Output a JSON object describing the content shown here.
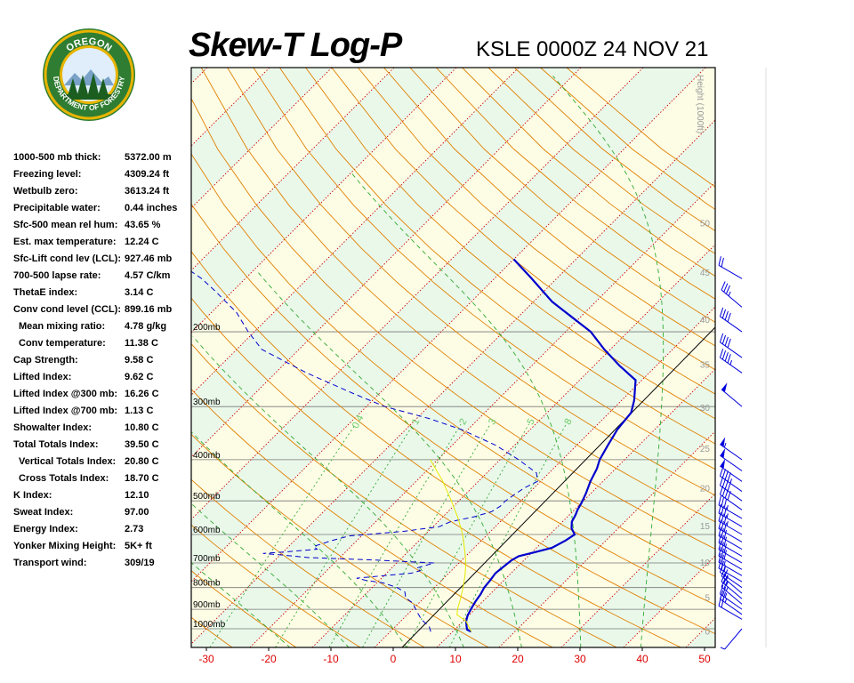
{
  "header": {
    "title": "Skew-T Log-P",
    "station": "KSLE 0000Z 24 NOV 21"
  },
  "logo": {
    "top_text": "OREGON",
    "bottom_text": "DEPARTMENT OF FORESTRY"
  },
  "indices": [
    {
      "label": "1000-500 mb thick:",
      "value": "5372.00 m",
      "indent": false
    },
    {
      "label": "Freezing level:",
      "value": "4309.24 ft",
      "indent": false
    },
    {
      "label": "Wetbulb zero:",
      "value": "3613.24 ft",
      "indent": false
    },
    {
      "label": "Precipitable water:",
      "value": "0.44 inches",
      "indent": false
    },
    {
      "label": "Sfc-500 mean rel hum:",
      "value": "43.65 %",
      "indent": false
    },
    {
      "label": "Est. max temperature:",
      "value": "12.24 C",
      "indent": false
    },
    {
      "label": "Sfc-Lift cond lev (LCL):",
      "value": "927.46 mb",
      "indent": false
    },
    {
      "label": "700-500 lapse rate:",
      "value": "4.57 C/km",
      "indent": false
    },
    {
      "label": "ThetaE index:",
      "value": "3.14 C",
      "indent": false
    },
    {
      "label": "Conv cond level (CCL):",
      "value": "899.16 mb",
      "indent": false
    },
    {
      "label": "Mean mixing ratio:",
      "value": "4.78 g/kg",
      "indent": true
    },
    {
      "label": "Conv temperature:",
      "value": "11.38 C",
      "indent": true
    },
    {
      "label": "Cap Strength:",
      "value": "9.58 C",
      "indent": false
    },
    {
      "label": "Lifted Index:",
      "value": "9.62 C",
      "indent": false
    },
    {
      "label": "Lifted Index @300 mb:",
      "value": "16.26 C",
      "indent": false
    },
    {
      "label": "Lifted Index @700 mb:",
      "value": "1.13 C",
      "indent": false
    },
    {
      "label": "Showalter Index:",
      "value": "10.80 C",
      "indent": false
    },
    {
      "label": "Total Totals Index:",
      "value": "39.50 C",
      "indent": false
    },
    {
      "label": "Vertical Totals Index:",
      "value": "20.80 C",
      "indent": true
    },
    {
      "label": "Cross Totals Index:",
      "value": "18.70 C",
      "indent": true
    },
    {
      "label": "K Index:",
      "value": "12.10",
      "indent": false
    },
    {
      "label": "Sweat Index:",
      "value": "97.00",
      "indent": false
    },
    {
      "label": "Energy Index:",
      "value": "2.73",
      "indent": false
    },
    {
      "label": "Yonker Mixing Height:",
      "value": "5K+ ft",
      "indent": false
    },
    {
      "label": "Transport wind:",
      "value": "309/19",
      "indent": false
    }
  ],
  "chart_data": {
    "type": "line",
    "title": "Skew-T Log-P",
    "subtitle": "KSLE 0000Z 24 NOV 21",
    "xlabel": "",
    "ylabel": "",
    "x_ticks": [
      -30,
      -20,
      -10,
      0,
      10,
      20,
      30,
      40,
      50
    ],
    "x_tick_color": "#dd0000",
    "xlim": [
      -32,
      51
    ],
    "pressure_levels": [
      {
        "p": 200,
        "label": "200mb"
      },
      {
        "p": 300,
        "label": "300mb"
      },
      {
        "p": 400,
        "label": "400mb"
      },
      {
        "p": 500,
        "label": "500mb"
      },
      {
        "p": 600,
        "label": "600mb"
      },
      {
        "p": 700,
        "label": "700mb"
      },
      {
        "p": 800,
        "label": "800mb"
      },
      {
        "p": 900,
        "label": "900mb"
      },
      {
        "p": 1000,
        "label": "1000mb"
      }
    ],
    "height_axis": {
      "label": "Height (1000ft)",
      "ticks": [
        0,
        5,
        10,
        15,
        20,
        25,
        30,
        35,
        40,
        45,
        50
      ]
    },
    "mixing_ratio_labels": [
      "0.4",
      "1",
      "2",
      "3",
      "5",
      "8"
    ],
    "colors": {
      "temperature": "#0000cc",
      "dewpoint": "#0000cc",
      "parcel": "#e8e800",
      "isotherm": "#cc0000",
      "dry_adiabat": "#e08000",
      "moist_adiabat": "#33aa33",
      "mixing_ratio": "#33aa33",
      "band_green": "#eaf8ea",
      "band_yellow": "#fdfde6"
    },
    "series": [
      {
        "name": "Temperature",
        "style": "solid",
        "points": [
          [
            1016,
            13.0
          ],
          [
            1005,
            12.0
          ],
          [
            990,
            11.5
          ],
          [
            960,
            10.5
          ],
          [
            930,
            9.8
          ],
          [
            890,
            9.2
          ],
          [
            860,
            8.8
          ],
          [
            830,
            8.5
          ],
          [
            800,
            8.0
          ],
          [
            770,
            7.8
          ],
          [
            740,
            7.5
          ],
          [
            710,
            7.8
          ],
          [
            690,
            8.0
          ],
          [
            675,
            8.5
          ],
          [
            660,
            10.5
          ],
          [
            645,
            12.5
          ],
          [
            620,
            13.5
          ],
          [
            600,
            14.0
          ],
          [
            580,
            12.5
          ],
          [
            560,
            11.5
          ],
          [
            540,
            11.0
          ],
          [
            525,
            10.5
          ],
          [
            505,
            10.0
          ],
          [
            480,
            9.2
          ],
          [
            450,
            8.0
          ],
          [
            420,
            7.0
          ],
          [
            400,
            6.0
          ],
          [
            370,
            5.0
          ],
          [
            340,
            4.0
          ],
          [
            310,
            3.5
          ],
          [
            290,
            2.0
          ],
          [
            260,
            -1.0
          ],
          [
            240,
            -6.0
          ],
          [
            220,
            -11.0
          ],
          [
            200,
            -16.0
          ],
          [
            170,
            -27.0
          ],
          [
            150,
            -34.0
          ],
          [
            135,
            -40.0
          ]
        ]
      },
      {
        "name": "Dewpoint",
        "style": "dashed",
        "points": [
          [
            1016,
            6.5
          ],
          [
            990,
            5.5
          ],
          [
            950,
            3.0
          ],
          [
            920,
            1.5
          ],
          [
            900,
            0.5
          ],
          [
            870,
            -1.0
          ],
          [
            845,
            -3.0
          ],
          [
            820,
            -4.0
          ],
          [
            800,
            -6.0
          ],
          [
            780,
            -9.0
          ],
          [
            770,
            -12.0
          ],
          [
            760,
            -14.0
          ],
          [
            750,
            -10.0
          ],
          [
            740,
            -6.0
          ],
          [
            730,
            -5.0
          ],
          [
            720,
            -6.0
          ],
          [
            700,
            -4.0
          ],
          [
            690,
            -13.0
          ],
          [
            680,
            -25.0
          ],
          [
            670,
            -30.0
          ],
          [
            665,
            -33.0
          ],
          [
            660,
            -30.0
          ],
          [
            650,
            -25.0
          ],
          [
            640,
            -26.0
          ],
          [
            630,
            -25.0
          ],
          [
            620,
            -24.0
          ],
          [
            605,
            -22.0
          ],
          [
            590,
            -14.0
          ],
          [
            575,
            -9.0
          ],
          [
            560,
            -8.0
          ],
          [
            545,
            -5.0
          ],
          [
            530,
            -3.0
          ],
          [
            515,
            -2.5
          ],
          [
            500,
            -2.5
          ],
          [
            480,
            -2.0
          ],
          [
            465,
            -1.5
          ],
          [
            450,
            -0.5
          ],
          [
            430,
            -2.0
          ],
          [
            400,
            -7.0
          ],
          [
            370,
            -13.0
          ],
          [
            340,
            -21.0
          ],
          [
            320,
            -28.0
          ],
          [
            300,
            -37.0
          ],
          [
            280,
            -44.0
          ],
          [
            250,
            -55.0
          ],
          [
            220,
            -66.0
          ],
          [
            200,
            -71.0
          ],
          [
            180,
            -76.0
          ],
          [
            160,
            -83.0
          ],
          [
            150,
            -87.0
          ],
          [
            140,
            -92.0
          ]
        ]
      },
      {
        "name": "Parcel",
        "style": "solid",
        "points": [
          [
            1016,
            13.0
          ],
          [
            960,
            10.5
          ],
          [
            927,
            8.0
          ],
          [
            900,
            7.2
          ],
          [
            850,
            6.0
          ],
          [
            800,
            4.6
          ],
          [
            750,
            3.0
          ],
          [
            700,
            1.1
          ],
          [
            650,
            -1.3
          ],
          [
            600,
            -4.0
          ],
          [
            550,
            -7.3
          ],
          [
            500,
            -11.2
          ],
          [
            450,
            -15.7
          ],
          [
            400,
            -21.2
          ]
        ]
      }
    ],
    "wind_barbs": [
      {
        "p": 1000,
        "dir": 220,
        "spd": 5
      },
      {
        "p": 950,
        "dir": 300,
        "spd": 20
      },
      {
        "p": 925,
        "dir": 305,
        "spd": 25
      },
      {
        "p": 900,
        "dir": 305,
        "spd": 25
      },
      {
        "p": 875,
        "dir": 310,
        "spd": 25
      },
      {
        "p": 850,
        "dir": 310,
        "spd": 25
      },
      {
        "p": 825,
        "dir": 310,
        "spd": 25
      },
      {
        "p": 800,
        "dir": 305,
        "spd": 25
      },
      {
        "p": 775,
        "dir": 300,
        "spd": 25
      },
      {
        "p": 750,
        "dir": 300,
        "spd": 25
      },
      {
        "p": 725,
        "dir": 300,
        "spd": 30
      },
      {
        "p": 700,
        "dir": 300,
        "spd": 30
      },
      {
        "p": 675,
        "dir": 300,
        "spd": 30
      },
      {
        "p": 650,
        "dir": 300,
        "spd": 30
      },
      {
        "p": 625,
        "dir": 300,
        "spd": 30
      },
      {
        "p": 600,
        "dir": 300,
        "spd": 35
      },
      {
        "p": 575,
        "dir": 300,
        "spd": 35
      },
      {
        "p": 550,
        "dir": 300,
        "spd": 35
      },
      {
        "p": 525,
        "dir": 305,
        "spd": 40
      },
      {
        "p": 500,
        "dir": 305,
        "spd": 40
      },
      {
        "p": 475,
        "dir": 305,
        "spd": 45
      },
      {
        "p": 450,
        "dir": 305,
        "spd": 50
      },
      {
        "p": 425,
        "dir": 305,
        "spd": 50
      },
      {
        "p": 400,
        "dir": 305,
        "spd": 55
      },
      {
        "p": 300,
        "dir": 310,
        "spd": 50
      },
      {
        "p": 250,
        "dir": 305,
        "spd": 45
      },
      {
        "p": 230,
        "dir": 305,
        "spd": 40
      },
      {
        "p": 200,
        "dir": 305,
        "spd": 40
      },
      {
        "p": 175,
        "dir": 310,
        "spd": 35
      },
      {
        "p": 150,
        "dir": 300,
        "spd": 20
      }
    ]
  }
}
